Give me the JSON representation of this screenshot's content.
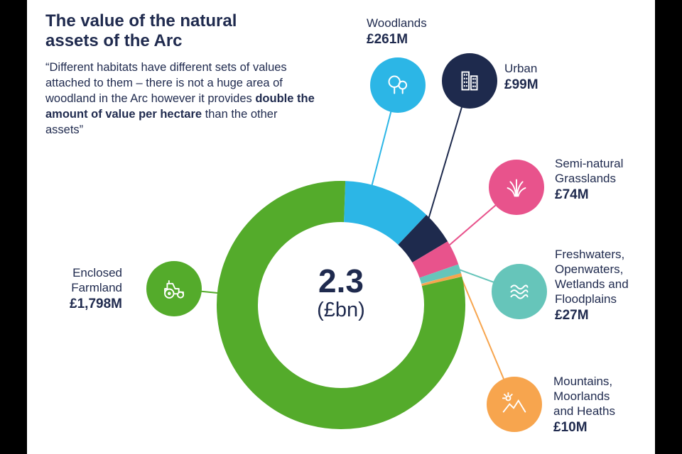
{
  "header": {
    "title": "The value of the natural assets of the Arc",
    "quote_pre": "“Different habitats have different sets of values attached to them – there is not a huge area of woodland in the Arc however it provides ",
    "quote_bold": "double the amount of value per hectare",
    "quote_post": " than the other assets”"
  },
  "chart_data": {
    "type": "pie",
    "subtype": "donut",
    "title": "The value of the natural assets of the Arc",
    "center": {
      "value": "2.3",
      "unit": "(£bn)"
    },
    "total_million": 2269,
    "total_label": "2.3 (£bn)",
    "start_angle_deg": 2,
    "legend_position": "callouts-around-chart",
    "segments": [
      {
        "id": "woodlands",
        "label": "Woodlands",
        "value_million": 261,
        "value_label": "£261M",
        "color": "#2cb6e6",
        "icon": "trees-icon"
      },
      {
        "id": "urban",
        "label": "Urban",
        "value_million": 99,
        "value_label": "£99M",
        "color": "#1e2a4d",
        "icon": "buildings-icon"
      },
      {
        "id": "grasslands",
        "label": "Semi-natural Grasslands",
        "value_million": 74,
        "value_label": "£74M",
        "color": "#e8538c",
        "icon": "grass-icon"
      },
      {
        "id": "freshwaters",
        "label": "Freshwaters, Openwaters, Wetlands and Floodplains",
        "value_million": 27,
        "value_label": "£27M",
        "color": "#66c5ba",
        "icon": "waves-icon"
      },
      {
        "id": "mountains",
        "label": "Mountains, Moorlands and Heaths",
        "value_million": 10,
        "value_label": "£10M",
        "color": "#f7a54e",
        "icon": "mountain-icon"
      },
      {
        "id": "farmland",
        "label": "Enclosed Farmland",
        "value_million": 1798,
        "value_label": "£1,798M",
        "color": "#54ab2b",
        "icon": "tractor-icon"
      }
    ]
  },
  "callouts": {
    "woodlands": {
      "line1": "Woodlands",
      "value": "£261M"
    },
    "urban": {
      "line1": "Urban",
      "value": "£99M"
    },
    "grasslands": {
      "line1": "Semi-natural",
      "line2": "Grasslands",
      "value": "£74M"
    },
    "freshwaters": {
      "line1": "Freshwaters,",
      "line2": "Openwaters,",
      "line3": "Wetlands and",
      "line4": "Floodplains",
      "value": "£27M"
    },
    "mountains": {
      "line1": "Mountains,",
      "line2": "Moorlands",
      "line3": "and Heaths",
      "value": "£10M"
    },
    "farmland": {
      "line1": "Enclosed",
      "line2": "Farmland",
      "value": "£1,798M"
    }
  }
}
